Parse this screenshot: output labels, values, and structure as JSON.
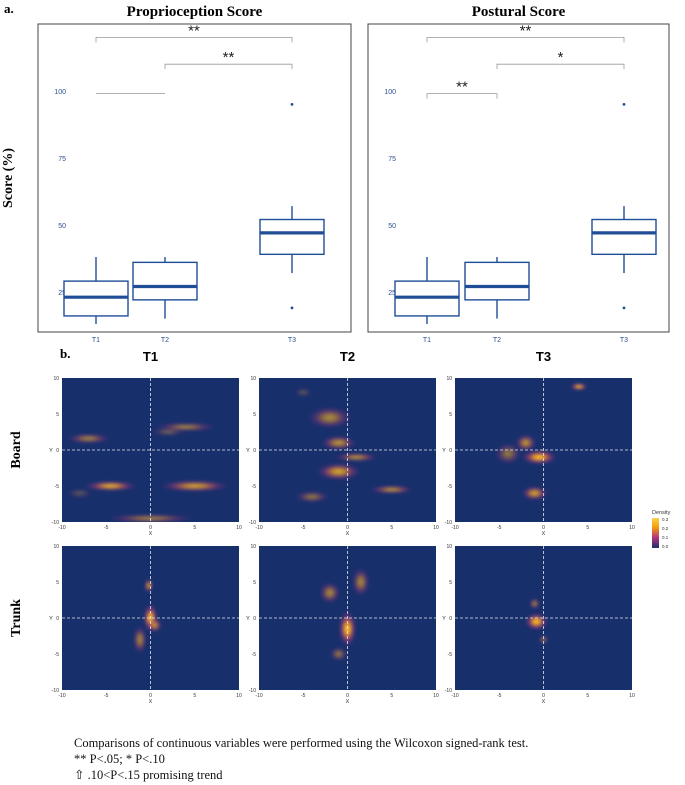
{
  "panel_a_label": "a.",
  "panel_b_label": "b.",
  "chart_data": [
    {
      "type": "box",
      "title": "Proprioception Score",
      "ylabel": "Score (%)",
      "categories": [
        "T1",
        "T2",
        "T3"
      ],
      "y_ticks": [
        "25",
        "50",
        "75",
        "100"
      ],
      "ylim": [
        10,
        125
      ],
      "boxes": [
        {
          "category": "T1",
          "whisker_low": 13,
          "q1": 16,
          "median": 23,
          "q3": 29,
          "whisker_high": 38,
          "outliers": []
        },
        {
          "category": "T2",
          "whisker_low": 15,
          "q1": 22,
          "median": 27,
          "q3": 36,
          "whisker_high": 38,
          "outliers": []
        },
        {
          "category": "T3",
          "whisker_low": 32,
          "q1": 39,
          "median": 47,
          "q3": 52,
          "whisker_high": 57,
          "outliers": [
            19,
            95
          ]
        }
      ],
      "brackets": [
        {
          "from": "T1",
          "to": "T3",
          "y": 120,
          "label": "**"
        },
        {
          "from": "T2",
          "to": "T3",
          "y": 110,
          "label": "**"
        },
        {
          "from": "T1",
          "to": "T2",
          "y": 99,
          "label": ""
        }
      ],
      "color": "#1f4e96"
    },
    {
      "type": "box",
      "title": "Postural Score",
      "ylabel": "",
      "categories": [
        "T1",
        "T2",
        "T3"
      ],
      "y_ticks": [
        "25",
        "50",
        "75",
        "100"
      ],
      "ylim": [
        10,
        125
      ],
      "boxes": [
        {
          "category": "T1",
          "whisker_low": 13,
          "q1": 16,
          "median": 23,
          "q3": 29,
          "whisker_high": 38,
          "outliers": []
        },
        {
          "category": "T2",
          "whisker_low": 15,
          "q1": 22,
          "median": 27,
          "q3": 36,
          "whisker_high": 38,
          "outliers": []
        },
        {
          "category": "T3",
          "whisker_low": 32,
          "q1": 39,
          "median": 47,
          "q3": 52,
          "whisker_high": 57,
          "outliers": [
            19,
            95
          ]
        }
      ],
      "brackets": [
        {
          "from": "T1",
          "to": "T3",
          "y": 120,
          "label": "**"
        },
        {
          "from": "T2",
          "to": "T3",
          "y": 110,
          "label": "*"
        },
        {
          "from": "T1",
          "to": "T2",
          "y": 99,
          "label": "**"
        }
      ],
      "color": "#1f4e96"
    },
    {
      "type": "heatmap",
      "title": "",
      "columns": [
        "T1",
        "T2",
        "T3"
      ],
      "rows": [
        "Board",
        "Trunk"
      ],
      "xlabel": "X",
      "ylabel": "Y",
      "x_ticks": [
        "-10",
        "-5",
        "0",
        "5",
        "10"
      ],
      "y_ticks": [
        "10",
        "5",
        "0",
        "-5",
        "-10"
      ],
      "xlim": [
        -10,
        10
      ],
      "ylim": [
        -10,
        10
      ],
      "legend_title": "Density",
      "legend_ticks": [
        "0.3",
        "0.2",
        "0.1",
        "0.0"
      ],
      "background": "#17306b",
      "blobs": {
        "Board": {
          "T1": [
            [
              -7,
              1.6,
              2.5,
              0.7,
              0.6
            ],
            [
              -4.5,
              -5,
              3,
              0.7,
              0.9
            ],
            [
              5,
              -5,
              4,
              0.8,
              0.8
            ],
            [
              4,
              3.2,
              3.5,
              0.6,
              0.6
            ],
            [
              0,
              -9.5,
              5,
              0.6,
              0.6
            ],
            [
              2,
              2.5,
              2,
              0.5,
              0.4
            ],
            [
              -8,
              -6,
              1.5,
              0.6,
              0.3
            ]
          ],
          "T2": [
            [
              -2,
              4.5,
              2.5,
              1.5,
              0.6
            ],
            [
              -1,
              1,
              2,
              1,
              0.7
            ],
            [
              -1,
              -3,
              2.5,
              1.2,
              0.8
            ],
            [
              1,
              -1,
              2.5,
              0.6,
              0.7
            ],
            [
              5,
              -5.5,
              2.5,
              0.6,
              0.7
            ],
            [
              -4,
              -6.5,
              2,
              0.8,
              0.5
            ],
            [
              -5,
              8,
              1,
              0.6,
              0.3
            ]
          ],
          "T3": [
            [
              4,
              8.8,
              1,
              0.5,
              1.0
            ],
            [
              -0.5,
              -1,
              2,
              1,
              1.0
            ],
            [
              -2,
              1,
              1.2,
              1.2,
              0.7
            ],
            [
              -1,
              -6,
              1.5,
              1,
              0.8
            ],
            [
              -4,
              -0.5,
              1.5,
              1.5,
              0.5
            ]
          ]
        },
        "Trunk": {
          "T1": [
            [
              0,
              0,
              0.8,
              2,
              1.0
            ],
            [
              -0.2,
              4.5,
              0.5,
              1,
              0.8
            ],
            [
              -1.2,
              -3,
              0.8,
              2,
              0.6
            ],
            [
              0.5,
              -1,
              0.8,
              1,
              0.7
            ]
          ],
          "T2": [
            [
              0,
              -1.5,
              1,
              2.5,
              1.0
            ],
            [
              -2,
              3.5,
              1.2,
              1.5,
              0.6
            ],
            [
              1.5,
              5,
              1,
              2,
              0.6
            ],
            [
              -1,
              -5,
              1,
              1,
              0.5
            ]
          ],
          "T3": [
            [
              -0.8,
              -0.5,
              1.3,
              1.2,
              1.0
            ],
            [
              -1,
              2,
              0.6,
              0.8,
              0.6
            ],
            [
              0,
              -3,
              0.6,
              0.6,
              0.5
            ]
          ]
        }
      }
    }
  ],
  "caption": {
    "line1": "Comparisons of continuous variables were performed using the Wilcoxon signed-rank test.",
    "line2": "** P<.05; * P<.10",
    "line3": "⇧  .10<P<.15 promising trend"
  }
}
